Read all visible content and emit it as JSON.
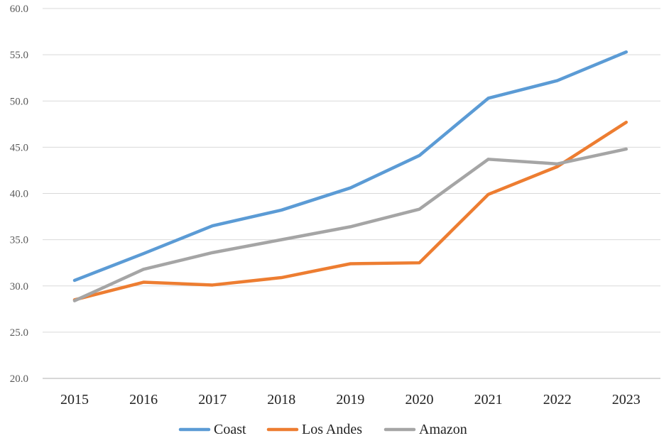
{
  "chart_data": {
    "type": "line",
    "title": "",
    "xlabel": "",
    "ylabel": "",
    "categories": [
      "2015",
      "2016",
      "2017",
      "2018",
      "2019",
      "2020",
      "2021",
      "2022",
      "2023"
    ],
    "ylim": [
      20,
      60
    ],
    "yticks": [
      "20.0",
      "25.0",
      "30.0",
      "35.0",
      "40.0",
      "45.0",
      "50.0",
      "55.0",
      "60.0"
    ],
    "yticks_values": [
      20,
      25,
      30,
      35,
      40,
      45,
      50,
      55,
      60
    ],
    "grid": true,
    "legend_position": "bottom",
    "series": [
      {
        "name": "Coast",
        "color": "#5B9BD5",
        "values": [
          30.6,
          33.5,
          36.5,
          38.2,
          40.6,
          44.1,
          50.3,
          52.2,
          55.3
        ]
      },
      {
        "name": "Los Andes",
        "color": "#ED7D31",
        "values": [
          28.5,
          30.4,
          30.1,
          30.9,
          32.4,
          32.5,
          39.9,
          42.9,
          47.7
        ]
      },
      {
        "name": "Amazon",
        "color": "#A5A5A5",
        "values": [
          28.4,
          31.8,
          33.6,
          35.0,
          36.4,
          38.3,
          43.7,
          43.2,
          44.8
        ]
      }
    ]
  }
}
